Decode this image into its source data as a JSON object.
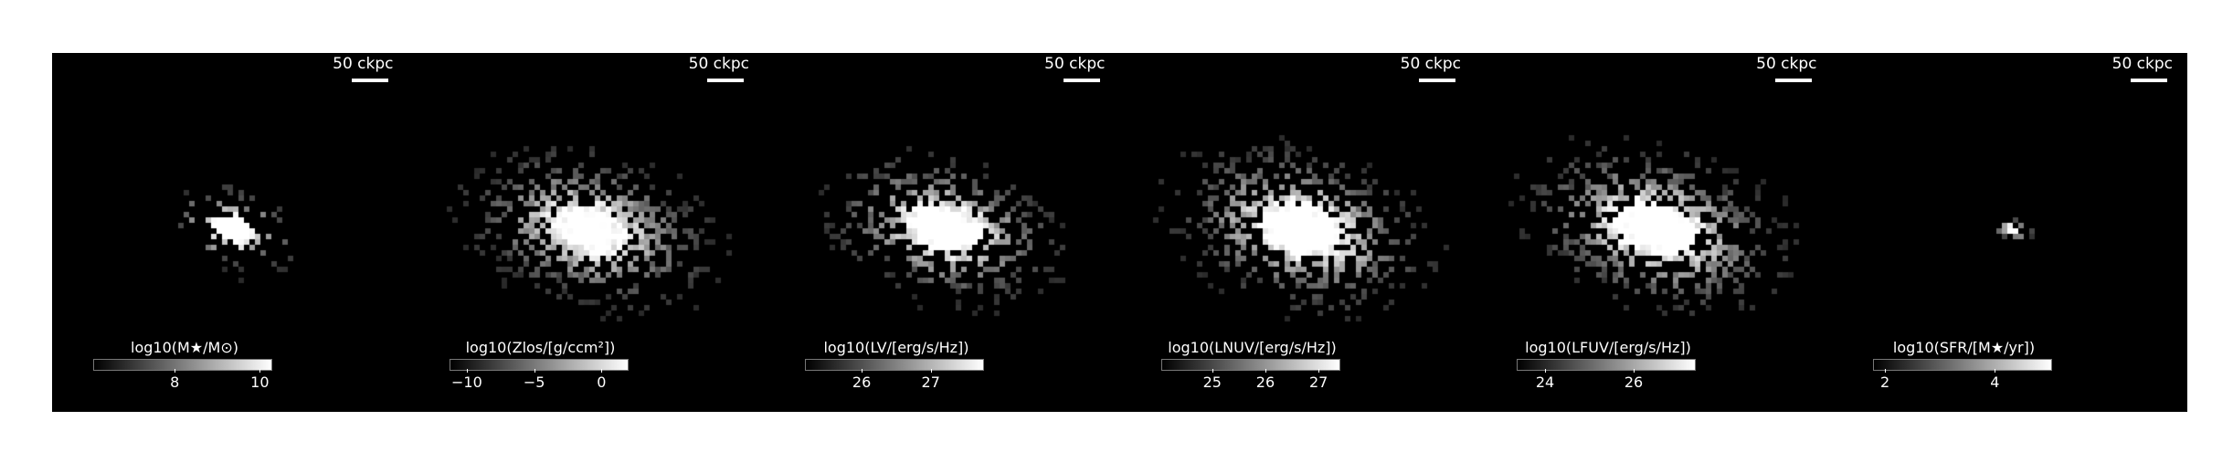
{
  "panels": [
    {
      "scale_label": "50 ckpc",
      "colorbar_label": "log10(M★/M⊙)",
      "ticks": [
        {
          "label": "8",
          "frac": 0.46
        },
        {
          "label": "10",
          "frac": 0.94
        }
      ],
      "map": {
        "spread": 0.55,
        "fill": 0.35,
        "core": 1.0
      }
    },
    {
      "scale_label": "50 ckpc",
      "colorbar_label": "log10(Zlos/[g/ccm²])",
      "ticks": [
        {
          "label": "−10",
          "frac": 0.1
        },
        {
          "label": "−5",
          "frac": 0.48
        },
        {
          "label": "0",
          "frac": 0.86
        }
      ],
      "map": {
        "spread": 1.0,
        "fill": 0.85,
        "core": 0.9
      }
    },
    {
      "scale_label": "50 ckpc",
      "colorbar_label": "log10(LV/[erg/s/Hz])",
      "ticks": [
        {
          "label": "26",
          "frac": 0.32
        },
        {
          "label": "27",
          "frac": 0.71
        }
      ],
      "map": {
        "spread": 0.95,
        "fill": 0.7,
        "core": 1.0
      }
    },
    {
      "scale_label": "50 ckpc",
      "colorbar_label": "log10(LNUV/[erg/s/Hz])",
      "ticks": [
        {
          "label": "25",
          "frac": 0.29
        },
        {
          "label": "26",
          "frac": 0.59
        },
        {
          "label": "27",
          "frac": 0.89
        }
      ],
      "map": {
        "spread": 1.05,
        "fill": 0.75,
        "core": 1.0
      }
    },
    {
      "scale_label": "50 ckpc",
      "colorbar_label": "log10(LFUV/[erg/s/Hz])",
      "ticks": [
        {
          "label": "24",
          "frac": 0.16
        },
        {
          "label": "26",
          "frac": 0.66
        }
      ],
      "map": {
        "spread": 1.05,
        "fill": 0.8,
        "core": 1.0
      }
    },
    {
      "scale_label": "50 ckpc",
      "colorbar_label": "log10(SFR/[M★/yr])",
      "ticks": [
        {
          "label": "2",
          "frac": 0.07
        },
        {
          "label": "4",
          "frac": 0.69
        }
      ],
      "map": {
        "spread": 0.18,
        "fill": 0.9,
        "core": 0.9
      }
    }
  ]
}
